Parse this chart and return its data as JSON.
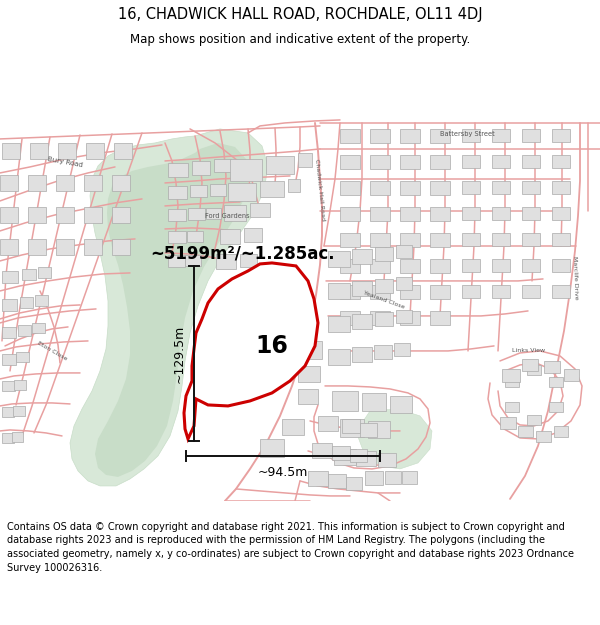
{
  "title_line1": "16, CHADWICK HALL ROAD, ROCHDALE, OL11 4DJ",
  "title_line2": "Map shows position and indicative extent of the property.",
  "area_label": "~5199m²/~1.285ac.",
  "height_label": "~129.5m",
  "width_label": "~94.5m",
  "number_label": "16",
  "footer_text": "Contains OS data © Crown copyright and database right 2021. This information is subject to Crown copyright and database rights 2023 and is reproduced with the permission of HM Land Registry. The polygons (including the associated geometry, namely x, y co-ordinates) are subject to Crown copyright and database rights 2023 Ordnance Survey 100026316.",
  "map_bg": "#ffffff",
  "property_fill": "#ffffff",
  "property_stroke": "#cc0000",
  "road_color": "#e8a0a0",
  "road_outline": "#d08080",
  "building_fill": "#e0e0e0",
  "building_edge": "#aaaaaa",
  "green_color": "#d8e8d8",
  "river_color": "#c8ddc8",
  "fig_bg": "#ffffff",
  "title_fontsize": 10.5,
  "subtitle_fontsize": 8.5,
  "footer_fontsize": 7.0,
  "label_color": "#555555",
  "arrow_color": "#111111"
}
